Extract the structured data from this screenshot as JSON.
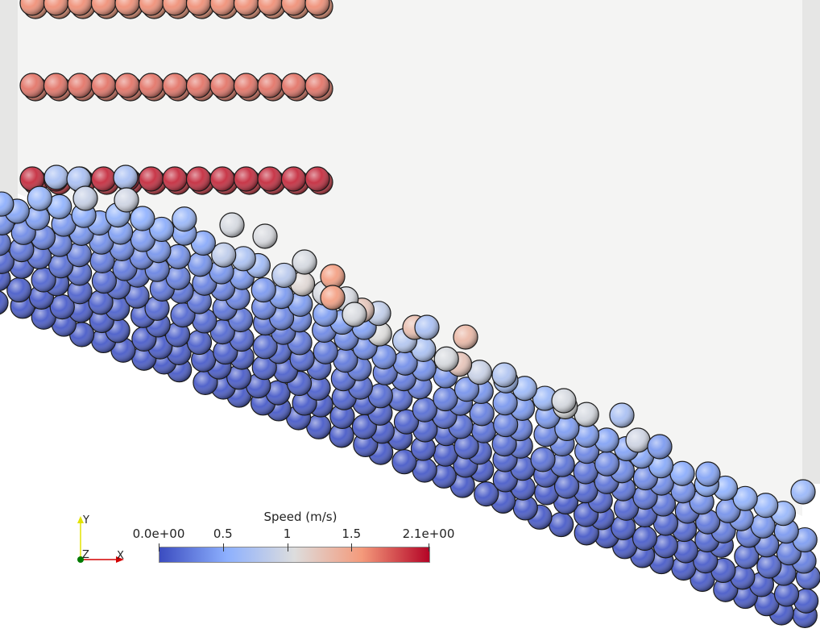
{
  "colorbar": {
    "title": "Speed (m/s)",
    "ticks": [
      {
        "value": 0.0,
        "label": "0.0e+00"
      },
      {
        "value": 0.5,
        "label": "0.5"
      },
      {
        "value": 1.0,
        "label": "1"
      },
      {
        "value": 1.5,
        "label": "1.5"
      },
      {
        "value": 2.1,
        "label": "2.1e+00"
      }
    ],
    "range": [
      0.0,
      2.1
    ],
    "colormap": [
      "#3b4cc0",
      "#8db0fe",
      "#dddddd",
      "#f49a7b",
      "#b40426"
    ]
  },
  "axes": {
    "y_label": "Y",
    "z_label": "Z",
    "x_label": "X",
    "y_color": "#e3e300",
    "x_color": "#d40000",
    "z_color": "#007a00"
  },
  "scene": {
    "background": "#ffffff",
    "wall_color": "#f4f4f3",
    "wall_edge_color": "#e6e6e5"
  }
}
